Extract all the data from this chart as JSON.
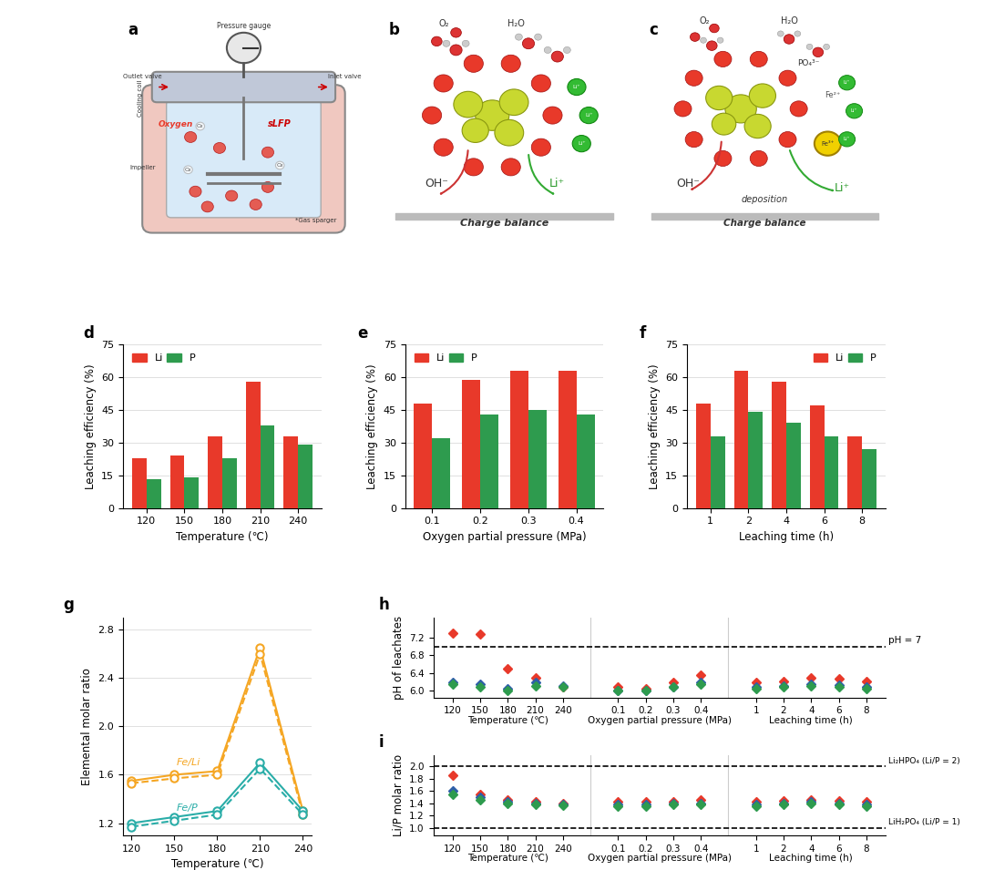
{
  "panel_d": {
    "temps": [
      120,
      150,
      180,
      210,
      240
    ],
    "Li": [
      23,
      24,
      33,
      58,
      33
    ],
    "P": [
      13,
      14,
      23,
      38,
      29
    ]
  },
  "panel_e": {
    "pressures": [
      "0.1",
      "0.2",
      "0.3",
      "0.4"
    ],
    "Li": [
      48,
      59,
      63,
      63
    ],
    "P": [
      32,
      43,
      45,
      43
    ]
  },
  "panel_f": {
    "times": [
      1,
      2,
      4,
      6,
      8
    ],
    "Li": [
      48,
      63,
      58,
      47,
      33
    ],
    "P": [
      33,
      44,
      39,
      33,
      27
    ]
  },
  "panel_g": {
    "temps": [
      120,
      150,
      180,
      210,
      240
    ],
    "FeLi_solid": [
      1.55,
      1.6,
      1.63,
      2.65,
      1.3
    ],
    "FeLi_dashed": [
      1.53,
      1.57,
      1.6,
      2.6,
      1.27
    ],
    "FeP_solid": [
      1.2,
      1.25,
      1.3,
      1.7,
      1.3
    ],
    "FeP_dashed": [
      1.17,
      1.22,
      1.27,
      1.65,
      1.27
    ]
  },
  "panel_h": {
    "temp_labels": [
      "120",
      "150",
      "180",
      "210",
      "240"
    ],
    "temp_red": [
      7.3,
      7.28,
      6.5,
      6.3,
      6.1
    ],
    "temp_blue": [
      6.2,
      6.15,
      6.05,
      6.2,
      6.12
    ],
    "temp_green": [
      6.15,
      6.1,
      6.0,
      6.12,
      6.1
    ],
    "press_labels": [
      "0.1",
      "0.2",
      "0.3",
      "0.4"
    ],
    "press_red": [
      6.1,
      6.05,
      6.2,
      6.35
    ],
    "press_blue": [
      6.0,
      6.0,
      6.1,
      6.2
    ],
    "press_green": [
      6.0,
      6.0,
      6.1,
      6.15
    ],
    "time_labels": [
      "1",
      "2",
      "4",
      "6",
      "8"
    ],
    "time_red": [
      6.2,
      6.22,
      6.3,
      6.28,
      6.22
    ],
    "time_blue": [
      6.1,
      6.12,
      6.15,
      6.13,
      6.1
    ],
    "time_green": [
      6.05,
      6.1,
      6.12,
      6.1,
      6.05
    ],
    "pH7_line": 7.0,
    "ymin": 5.85,
    "ymax": 7.65,
    "yticks": [
      6.0,
      6.4,
      6.8,
      7.2
    ]
  },
  "panel_i": {
    "temp_labels": [
      "120",
      "150",
      "180",
      "210",
      "240"
    ],
    "temp_red": [
      1.85,
      1.55,
      1.45,
      1.42,
      1.4
    ],
    "temp_blue": [
      1.6,
      1.5,
      1.42,
      1.4,
      1.38
    ],
    "temp_green": [
      1.55,
      1.45,
      1.4,
      1.38,
      1.36
    ],
    "press_labels": [
      "0.1",
      "0.2",
      "0.3",
      "0.4"
    ],
    "press_red": [
      1.42,
      1.42,
      1.42,
      1.45
    ],
    "press_blue": [
      1.38,
      1.38,
      1.4,
      1.4
    ],
    "press_green": [
      1.35,
      1.35,
      1.38,
      1.38
    ],
    "time_labels": [
      "1",
      "2",
      "4",
      "6",
      "8"
    ],
    "time_red": [
      1.42,
      1.44,
      1.45,
      1.44,
      1.42
    ],
    "time_blue": [
      1.38,
      1.4,
      1.42,
      1.4,
      1.38
    ],
    "time_green": [
      1.35,
      1.38,
      1.4,
      1.38,
      1.35
    ],
    "Li2HPO4_line": 2.0,
    "LiH2PO4_line": 1.0,
    "ymin": 0.88,
    "ymax": 2.18,
    "yticks": [
      1.0,
      1.2,
      1.4,
      1.6,
      1.8,
      2.0
    ]
  },
  "colors": {
    "red": "#E8392A",
    "green": "#2E9B4E",
    "orange": "#F5A623",
    "teal": "#2AADA8",
    "blue": "#2F5FA8",
    "dark_green": "#2E7D32"
  }
}
